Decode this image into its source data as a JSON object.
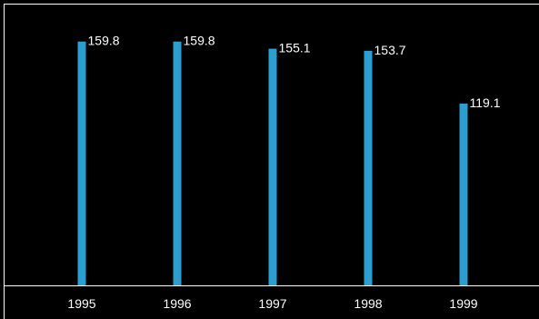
{
  "chart_data": {
    "type": "bar",
    "title": "",
    "xlabel": "",
    "ylabel": "",
    "categories": [
      "1995",
      "1996",
      "1997",
      "1998",
      "1999"
    ],
    "values": [
      159.8,
      159.8,
      155.1,
      153.7,
      119.1
    ],
    "value_labels": [
      "159.8",
      "159.8",
      "155.1",
      "153.7",
      "119.1"
    ],
    "ylim": [
      0,
      187
    ],
    "grid": false,
    "legend": "none",
    "colors": {
      "bar": "#2a9fd0",
      "background": "#000000",
      "frame": "#ffffff",
      "text": "#ffffff"
    }
  }
}
